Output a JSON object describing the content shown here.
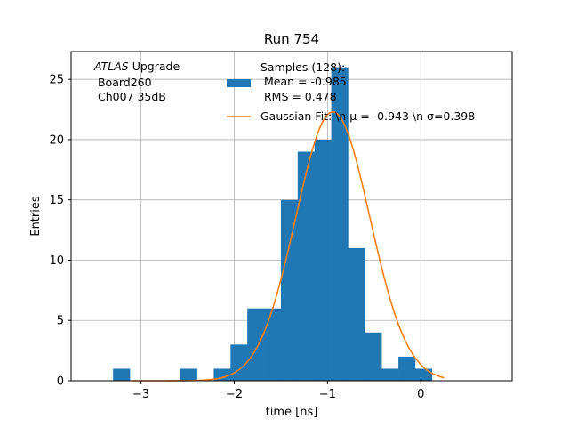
{
  "chart_data": {
    "type": "bar",
    "title": "Run 754",
    "xlabel": "time [ns]",
    "ylabel": "Entries",
    "xlim": [
      -3.75,
      0.98
    ],
    "ylim": [
      0,
      27.3
    ],
    "xticks": [
      -3,
      -2,
      -1,
      0
    ],
    "xtick_labels": [
      "−3",
      "−2",
      "−1",
      "0"
    ],
    "yticks": [
      0,
      5,
      10,
      15,
      20,
      25
    ],
    "ytick_labels": [
      "0",
      "5",
      "10",
      "15",
      "20",
      "25"
    ],
    "grid": true,
    "annotation": {
      "lines": [
        " Upgrade",
        " Board260",
        " Ch007 35dB"
      ],
      "italic_prefix": "ATLAS"
    },
    "histogram": {
      "bin_edges": [
        -3.3,
        -3.12,
        -2.94,
        -2.76,
        -2.58,
        -2.4,
        -2.22,
        -2.04,
        -1.86,
        -1.68,
        -1.5,
        -1.32,
        -1.14,
        -0.96,
        -0.78,
        -0.6,
        -0.42,
        -0.24,
        -0.06,
        0.12,
        0.3,
        0.48
      ],
      "counts": [
        1,
        0,
        0,
        0,
        1,
        0,
        1,
        3,
        6,
        6,
        15,
        19,
        20,
        26,
        11,
        4,
        1,
        2,
        1,
        0,
        0
      ],
      "color": "#1f77b4",
      "legend_lines": [
        "Samples (128):",
        " Mean = -0.985",
        " RMS = 0.478"
      ]
    },
    "fit": {
      "type": "gaussian",
      "mu": -0.943,
      "sigma": 0.398,
      "amplitude": 22.3,
      "x_range": [
        -3.1,
        0.25
      ],
      "color": "#ff7f0e",
      "legend_label": "Gaussian Fit: \\n μ = -0.943 \\n σ=0.398"
    },
    "legend_placement": "top-center"
  }
}
